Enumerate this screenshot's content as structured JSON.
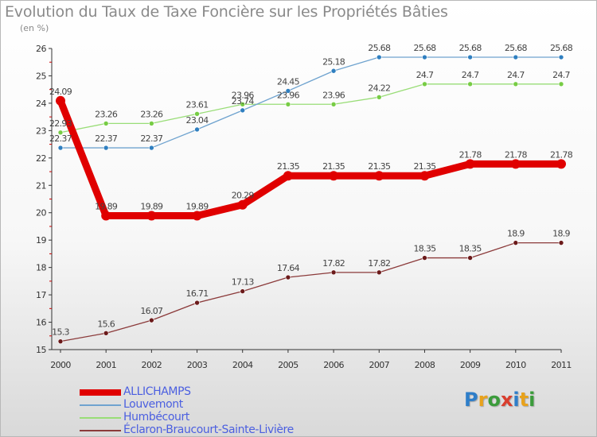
{
  "title": "Evolution du Taux de Taxe Foncière sur les Propriétés Bâties",
  "subtitle": "(en %)",
  "logo": {
    "text": "Proxiti",
    "colors": [
      "#2e7ec9",
      "#e8a21c",
      "#3b9c3b",
      "#d93e2e",
      "#2e7ec9",
      "#e8a21c",
      "#3b9c3b"
    ]
  },
  "chart_data": {
    "type": "line",
    "title": "Evolution du Taux de Taxe Foncière sur les Propriétés Bâties",
    "ylabel": "(en %)",
    "xlabel": "",
    "ylim": [
      15,
      26
    ],
    "yticks": [
      "15",
      "16",
      "17",
      "18",
      "19",
      "20",
      "21",
      "22",
      "23",
      "24",
      "25",
      "26"
    ],
    "x": [
      "2000",
      "2001",
      "2002",
      "2003",
      "2004",
      "2005",
      "2006",
      "2007",
      "2008",
      "2009",
      "2010",
      "2011"
    ],
    "grid": false,
    "legend_position": "bottom-left",
    "series": [
      {
        "name": "ALLICHAMPS",
        "values": [
          24.09,
          19.89,
          19.89,
          19.89,
          20.29,
          21.35,
          21.35,
          21.35,
          21.35,
          21.78,
          21.78,
          21.78
        ],
        "labels": [
          "24.09",
          "19.89",
          "19.89",
          "19.89",
          "20.29",
          "21.35",
          "21.35",
          "21.35",
          "21.35",
          "21.78",
          "21.78",
          "21.78"
        ],
        "color": "#e00000",
        "bold": true
      },
      {
        "name": "Louvemont",
        "values": [
          22.37,
          22.37,
          22.37,
          23.04,
          23.74,
          24.45,
          25.18,
          25.68,
          25.68,
          25.68,
          25.68,
          25.68
        ],
        "labels": [
          "22.37",
          "22.37",
          "22.37",
          "23.04",
          "23.74",
          "24.45",
          "25.18",
          "25.68",
          "25.68",
          "25.68",
          "25.68",
          "25.68"
        ],
        "color": "#6fa3cf",
        "marker": "#2f7fc0"
      },
      {
        "name": "Humbécourt",
        "values": [
          22.93,
          23.26,
          23.26,
          23.61,
          23.96,
          23.96,
          23.96,
          24.22,
          24.7,
          24.7,
          24.7,
          24.7
        ],
        "labels": [
          "22.93",
          "23.26",
          "23.26",
          "23.61",
          "23.96",
          "23.96",
          "23.96",
          "24.22",
          "24.7",
          "24.7",
          "24.7",
          "24.7"
        ],
        "color": "#99dd77",
        "marker": "#77cc44"
      },
      {
        "name": "Éclaron-Braucourt-Sainte-Livière",
        "values": [
          15.3,
          15.6,
          16.07,
          16.71,
          17.13,
          17.64,
          17.82,
          17.82,
          18.35,
          18.35,
          18.9,
          18.9
        ],
        "labels": [
          "15.3",
          "15.6",
          "16.07",
          "16.71",
          "17.13",
          "17.64",
          "17.82",
          "17.82",
          "18.35",
          "18.35",
          "18.9",
          "18.9"
        ],
        "color": "#8b3a3a",
        "marker": "#6b1a1a"
      }
    ]
  }
}
